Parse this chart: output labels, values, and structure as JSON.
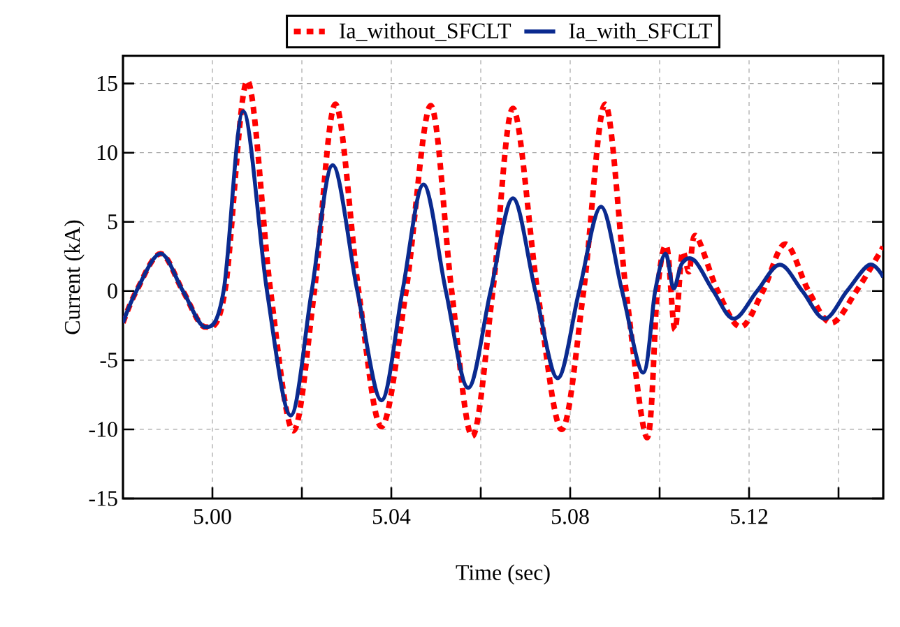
{
  "chart_data": {
    "type": "line",
    "xlabel": "Time (sec)",
    "ylabel": "Current (kA)",
    "xlim": [
      4.98,
      5.15
    ],
    "ylim": [
      -15,
      17
    ],
    "xticks": [
      {
        "value": 5.0,
        "label": "5.00"
      },
      {
        "value": 5.02,
        "label": null
      },
      {
        "value": 5.04,
        "label": "5.04"
      },
      {
        "value": 5.06,
        "label": null
      },
      {
        "value": 5.08,
        "label": "5.08"
      },
      {
        "value": 5.1,
        "label": null
      },
      {
        "value": 5.12,
        "label": "5.12"
      },
      {
        "value": 5.14,
        "label": null
      }
    ],
    "yticks": [
      -15,
      -10,
      -5,
      0,
      5,
      10,
      15
    ],
    "grid": true,
    "legend": "top",
    "series": [
      {
        "name": "Ia_without_SFCLT",
        "color": "#ff0000",
        "line_style": "dashed",
        "x": [
          4.98,
          4.983,
          4.9884,
          4.9934,
          4.9984,
          5.0028,
          5.0078,
          5.013,
          5.0181,
          5.0228,
          5.0275,
          5.0327,
          5.0378,
          5.0433,
          5.0488,
          5.0535,
          5.0581,
          5.0627,
          5.0672,
          5.0727,
          5.0781,
          5.083,
          5.0878,
          5.0925,
          5.0972,
          5.0995,
          5.1016,
          5.1034,
          5.105,
          5.1066,
          5.1081,
          5.113,
          5.1181,
          5.1231,
          5.1281,
          5.1333,
          5.1384,
          5.144,
          5.15
        ],
        "values": [
          -2.3,
          0,
          2.7,
          0,
          -2.6,
          0,
          15.2,
          0,
          -10.1,
          0,
          13.5,
          0,
          -9.8,
          0,
          13.4,
          0,
          -10.5,
          0,
          13.2,
          0,
          -10.0,
          0,
          13.5,
          0,
          -10.6,
          0,
          3.2,
          -2.8,
          2.7,
          1.4,
          4.0,
          0,
          -2.6,
          0,
          3.4,
          0,
          -2.3,
          0,
          3.2
        ]
      },
      {
        "name": "Ia_with_SFCLT",
        "color": "#0a2a8f",
        "line_style": "solid",
        "x": [
          4.98,
          4.983,
          4.9884,
          4.9934,
          4.9984,
          5.0025,
          5.0069,
          5.0122,
          5.0175,
          5.0222,
          5.0269,
          5.0324,
          5.0378,
          5.0425,
          5.0472,
          5.0522,
          5.0572,
          5.0622,
          5.0672,
          5.0722,
          5.0772,
          5.082,
          5.0869,
          5.0916,
          5.0963,
          5.099,
          5.1013,
          5.1031,
          5.105,
          5.1078,
          5.112,
          5.1166,
          5.1218,
          5.1269,
          5.1319,
          5.1369,
          5.1419,
          5.1469,
          5.15
        ],
        "values": [
          -2.3,
          0,
          2.7,
          0,
          -2.6,
          0,
          13.0,
          0,
          -9.0,
          0,
          9.1,
          0,
          -7.9,
          0,
          7.7,
          0,
          -7.0,
          0,
          6.7,
          0,
          -6.3,
          0,
          6.1,
          0,
          -5.9,
          0,
          2.7,
          0.2,
          2.0,
          2.2,
          0,
          -2.0,
          0,
          1.9,
          0,
          -2.0,
          0,
          1.9,
          1.0
        ]
      }
    ]
  }
}
